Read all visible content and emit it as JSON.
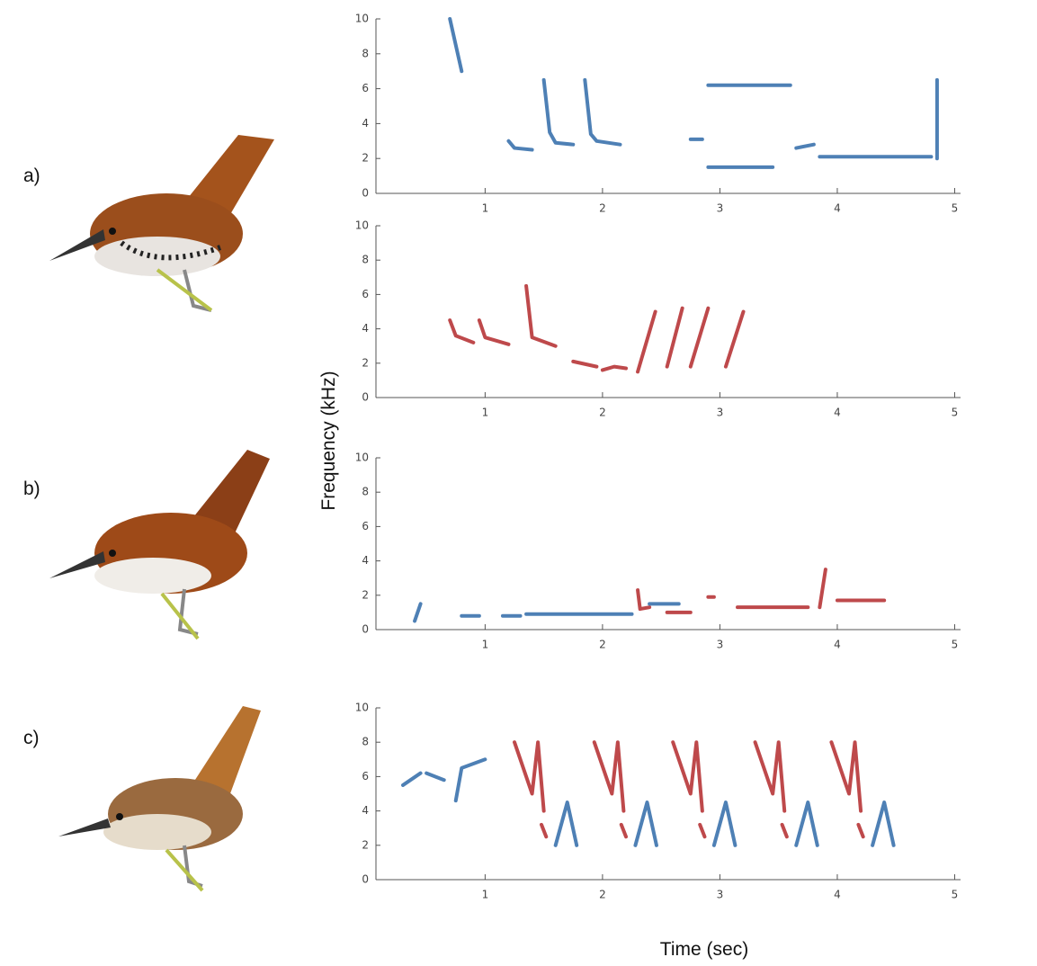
{
  "ylabel": "Frequency (kHz)",
  "xlabel": "Time (sec)",
  "panel_labels": [
    "a)",
    "b)",
    "c)"
  ],
  "chart_data": [
    {
      "type": "spectrogram",
      "xlim": [
        0.07,
        5.05
      ],
      "ylim": [
        0,
        10
      ],
      "xticks": [
        1,
        2,
        3,
        4,
        5
      ],
      "yticks": [
        0,
        2,
        4,
        6,
        8,
        10
      ],
      "color": "#2f6aa8",
      "notes": [
        {
          "t": [
            0.7,
            0.8
          ],
          "f": [
            10,
            7
          ]
        },
        {
          "t": [
            1.2,
            1.25,
            1.4
          ],
          "f": [
            3,
            2.6,
            2.5
          ]
        },
        {
          "t": [
            1.5,
            1.55,
            1.6,
            1.75
          ],
          "f": [
            6.5,
            3.5,
            2.9,
            2.8
          ]
        },
        {
          "t": [
            1.85,
            1.9,
            1.95,
            2.15
          ],
          "f": [
            6.5,
            3.4,
            3,
            2.8
          ]
        },
        {
          "t": [
            2.75,
            2.85
          ],
          "f": [
            3.1,
            3.1
          ]
        },
        {
          "t": [
            2.9,
            3.45
          ],
          "f": [
            1.5,
            1.5
          ]
        },
        {
          "t": [
            2.9,
            3.6
          ],
          "f": [
            6.2,
            6.2
          ]
        },
        {
          "t": [
            3.65,
            3.8
          ],
          "f": [
            2.6,
            2.8
          ]
        },
        {
          "t": [
            3.85,
            4.8
          ],
          "f": [
            2.1,
            2.1
          ]
        },
        {
          "t": [
            4.85,
            4.85
          ],
          "f": [
            2,
            6.5
          ]
        }
      ]
    },
    {
      "type": "spectrogram",
      "xlim": [
        0.07,
        5.05
      ],
      "ylim": [
        0,
        10
      ],
      "xticks": [
        1,
        2,
        3,
        4,
        5
      ],
      "yticks": [
        0,
        2,
        4,
        6,
        8,
        10
      ],
      "color": "#b3292c",
      "notes": [
        {
          "t": [
            0.7,
            0.75,
            0.9
          ],
          "f": [
            4.5,
            3.6,
            3.2
          ]
        },
        {
          "t": [
            0.95,
            1.0,
            1.2
          ],
          "f": [
            4.5,
            3.5,
            3.1
          ]
        },
        {
          "t": [
            1.35,
            1.4,
            1.6
          ],
          "f": [
            6.5,
            3.5,
            3
          ]
        },
        {
          "t": [
            1.75,
            1.95
          ],
          "f": [
            2.1,
            1.8
          ]
        },
        {
          "t": [
            2.0,
            2.1,
            2.2
          ],
          "f": [
            1.6,
            1.8,
            1.7
          ]
        },
        {
          "t": [
            2.3,
            2.45
          ],
          "f": [
            1.5,
            5
          ]
        },
        {
          "t": [
            2.55,
            2.68
          ],
          "f": [
            1.8,
            5.2
          ]
        },
        {
          "t": [
            2.75,
            2.9
          ],
          "f": [
            1.8,
            5.2
          ]
        },
        {
          "t": [
            3.05,
            3.2
          ],
          "f": [
            1.8,
            5
          ]
        }
      ]
    },
    {
      "type": "spectrogram",
      "xlim": [
        0.07,
        5.05
      ],
      "ylim": [
        0,
        10
      ],
      "xticks": [
        1,
        2,
        3,
        4,
        5
      ],
      "yticks": [
        0,
        2,
        4,
        6,
        8,
        10
      ],
      "notes": [
        {
          "t": [
            0.4,
            0.45
          ],
          "f": [
            0.5,
            1.5
          ],
          "color": "#2f6aa8"
        },
        {
          "t": [
            0.8,
            0.95
          ],
          "f": [
            0.8,
            0.8
          ],
          "color": "#2f6aa8"
        },
        {
          "t": [
            1.15,
            1.3
          ],
          "f": [
            0.8,
            0.8
          ],
          "color": "#2f6aa8"
        },
        {
          "t": [
            1.35,
            2.25
          ],
          "f": [
            0.9,
            0.9
          ],
          "color": "#2f6aa8"
        },
        {
          "t": [
            2.3,
            2.32,
            2.4
          ],
          "f": [
            2.3,
            1.2,
            1.3
          ],
          "color": "#b3292c"
        },
        {
          "t": [
            2.4,
            2.65
          ],
          "f": [
            1.5,
            1.5
          ],
          "color": "#2f6aa8"
        },
        {
          "t": [
            2.55,
            2.75
          ],
          "f": [
            1,
            1
          ],
          "color": "#b3292c"
        },
        {
          "t": [
            2.9,
            2.95
          ],
          "f": [
            1.9,
            1.9
          ],
          "color": "#b3292c"
        },
        {
          "t": [
            3.15,
            3.75
          ],
          "f": [
            1.3,
            1.3
          ],
          "color": "#b3292c"
        },
        {
          "t": [
            3.85,
            3.9
          ],
          "f": [
            1.3,
            3.5
          ],
          "color": "#b3292c"
        },
        {
          "t": [
            4.0,
            4.4
          ],
          "f": [
            1.7,
            1.7
          ],
          "color": "#b3292c"
        }
      ]
    },
    {
      "type": "spectrogram",
      "xlim": [
        0.07,
        5.05
      ],
      "ylim": [
        0,
        10
      ],
      "xticks": [
        1,
        2,
        3,
        4,
        5
      ],
      "yticks": [
        0,
        2,
        4,
        6,
        8,
        10
      ],
      "notes": [
        {
          "t": [
            0.3,
            0.45
          ],
          "f": [
            5.5,
            6.2
          ],
          "color": "#2f6aa8"
        },
        {
          "t": [
            0.5,
            0.65
          ],
          "f": [
            6.2,
            5.8
          ],
          "color": "#2f6aa8"
        },
        {
          "t": [
            0.75,
            0.8,
            1.0
          ],
          "f": [
            4.6,
            6.5,
            7
          ],
          "color": "#2f6aa8"
        },
        {
          "t": [
            1.25,
            1.4,
            1.45,
            1.5
          ],
          "f": [
            8,
            5,
            8,
            4
          ],
          "color": "#b3292c"
        },
        {
          "t": [
            1.48,
            1.52
          ],
          "f": [
            3.2,
            2.5
          ],
          "color": "#b3292c"
        },
        {
          "t": [
            1.6,
            1.7,
            1.78
          ],
          "f": [
            2,
            4.5,
            2
          ],
          "color": "#2f6aa8"
        },
        {
          "t": [
            1.93,
            2.08,
            2.13,
            2.18
          ],
          "f": [
            8,
            5,
            8,
            4
          ],
          "color": "#b3292c"
        },
        {
          "t": [
            2.16,
            2.2
          ],
          "f": [
            3.2,
            2.5
          ],
          "color": "#b3292c"
        },
        {
          "t": [
            2.28,
            2.38,
            2.46
          ],
          "f": [
            2,
            4.5,
            2
          ],
          "color": "#2f6aa8"
        },
        {
          "t": [
            2.6,
            2.75,
            2.8,
            2.85
          ],
          "f": [
            8,
            5,
            8,
            4
          ],
          "color": "#b3292c"
        },
        {
          "t": [
            2.83,
            2.87
          ],
          "f": [
            3.2,
            2.5
          ],
          "color": "#b3292c"
        },
        {
          "t": [
            2.95,
            3.05,
            3.13
          ],
          "f": [
            2,
            4.5,
            2
          ],
          "color": "#2f6aa8"
        },
        {
          "t": [
            3.3,
            3.45,
            3.5,
            3.55
          ],
          "f": [
            8,
            5,
            8,
            4
          ],
          "color": "#b3292c"
        },
        {
          "t": [
            3.53,
            3.57
          ],
          "f": [
            3.2,
            2.5
          ],
          "color": "#b3292c"
        },
        {
          "t": [
            3.65,
            3.75,
            3.83
          ],
          "f": [
            2,
            4.5,
            2
          ],
          "color": "#2f6aa8"
        },
        {
          "t": [
            3.95,
            4.1,
            4.15,
            4.2
          ],
          "f": [
            8,
            5,
            8,
            4
          ],
          "color": "#b3292c"
        },
        {
          "t": [
            4.18,
            4.22
          ],
          "f": [
            3.2,
            2.5
          ],
          "color": "#b3292c"
        },
        {
          "t": [
            4.3,
            4.4,
            4.48
          ],
          "f": [
            2,
            4.5,
            2
          ],
          "color": "#2f6aa8"
        }
      ]
    }
  ]
}
